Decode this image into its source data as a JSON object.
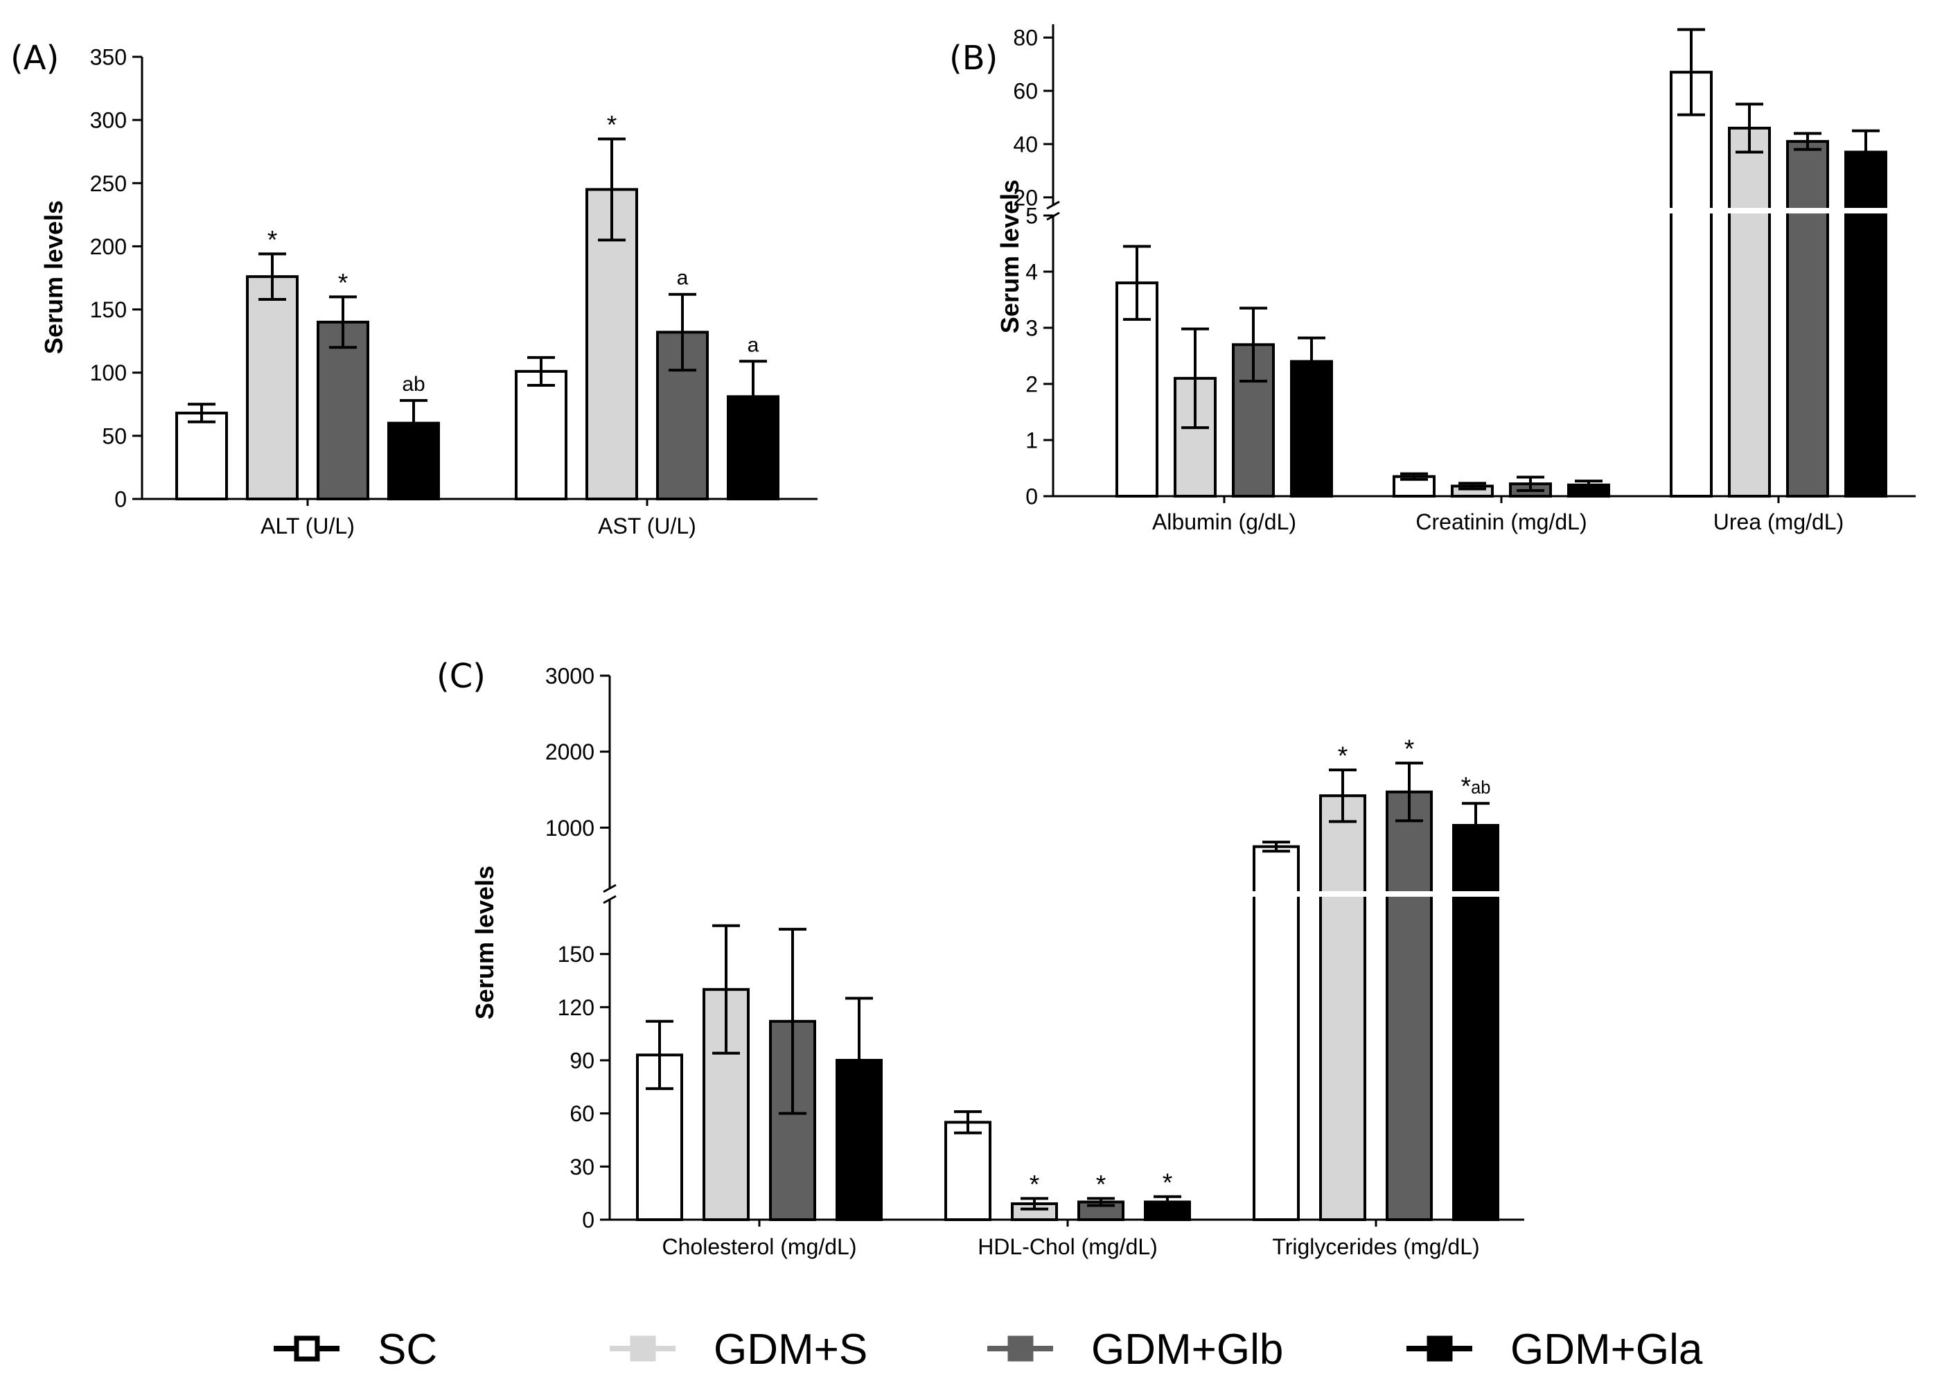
{
  "series_styles": {
    "SC": {
      "fill": "#ffffff"
    },
    "GDM+S": {
      "fill": "#d6d6d6"
    },
    "GDM+Glb": {
      "fill": "#606060"
    },
    "GDM+Gla": {
      "fill": "#000000"
    }
  },
  "legend": [
    "SC",
    "GDM+S",
    "GDM+Glb",
    "GDM+Gla"
  ],
  "chart_data": [
    {
      "panel": "(A)",
      "type": "bar",
      "ylabel": "Serum levels",
      "ylim": [
        0,
        350
      ],
      "yticks": [
        0,
        50,
        100,
        150,
        200,
        250,
        300,
        350
      ],
      "categories": [
        "ALT (U/L)",
        "AST (U/L)"
      ],
      "series": [
        {
          "name": "SC",
          "values": [
            68,
            101
          ],
          "errors": [
            7,
            11
          ],
          "annotations": [
            "",
            ""
          ]
        },
        {
          "name": "GDM+S",
          "values": [
            176,
            245
          ],
          "errors": [
            18,
            40
          ],
          "annotations": [
            "*",
            "*"
          ]
        },
        {
          "name": "GDM+Glb",
          "values": [
            140,
            132
          ],
          "errors": [
            20,
            30
          ],
          "annotations": [
            "*",
            "a"
          ]
        },
        {
          "name": "GDM+Gla",
          "values": [
            60,
            81
          ],
          "errors": [
            18,
            28
          ],
          "annotations": [
            "ab",
            "a"
          ]
        }
      ]
    },
    {
      "panel": "(B)",
      "type": "bar",
      "ylabel": "Serum levels",
      "axis_break": true,
      "lower_ylim": [
        0,
        5
      ],
      "lower_yticks": [
        0,
        1,
        2,
        3,
        4,
        5
      ],
      "upper_ylim": [
        15,
        85
      ],
      "upper_yticks": [
        20,
        40,
        60,
        80
      ],
      "categories": [
        "Albumin (g/dL)",
        "Creatinin (mg/dL)",
        "Urea (mg/dL)"
      ],
      "series": [
        {
          "name": "SC",
          "values": [
            3.8,
            0.35,
            67
          ],
          "errors": [
            0.65,
            0.05,
            16
          ]
        },
        {
          "name": "GDM+S",
          "values": [
            2.1,
            0.18,
            46
          ],
          "errors": [
            0.88,
            0.05,
            9
          ]
        },
        {
          "name": "GDM+Glb",
          "values": [
            2.7,
            0.22,
            41
          ],
          "errors": [
            0.65,
            0.12,
            3
          ]
        },
        {
          "name": "GDM+Gla",
          "values": [
            2.4,
            0.2,
            37
          ],
          "errors": [
            0.42,
            0.07,
            8
          ]
        }
      ]
    },
    {
      "panel": "(C)",
      "type": "bar",
      "ylabel": "Serum levels",
      "axis_break": true,
      "lower_ylim": [
        0,
        180
      ],
      "lower_yticks": [
        0,
        30,
        60,
        90,
        120,
        150
      ],
      "upper_ylim": [
        200,
        3000
      ],
      "upper_yticks": [
        1000,
        2000,
        3000
      ],
      "categories": [
        "Cholesterol (mg/dL)",
        "HDL-Chol (mg/dL)",
        "Triglycerides (mg/dL)"
      ],
      "series": [
        {
          "name": "SC",
          "values": [
            93,
            55,
            750
          ],
          "errors": [
            19,
            6,
            60
          ],
          "annotations": [
            "",
            "",
            ""
          ]
        },
        {
          "name": "GDM+S",
          "values": [
            130,
            9,
            1420
          ],
          "errors": [
            36,
            3,
            340
          ],
          "annotations": [
            "",
            "*",
            "*"
          ]
        },
        {
          "name": "GDM+Glb",
          "values": [
            112,
            10,
            1470
          ],
          "errors": [
            52,
            2,
            380
          ],
          "annotations": [
            "",
            "*",
            "*"
          ]
        },
        {
          "name": "GDM+Gla",
          "values": [
            90,
            10,
            1030
          ],
          "errors": [
            35,
            3,
            290
          ],
          "annotations": [
            "",
            "*",
            "*ab"
          ]
        }
      ]
    }
  ]
}
